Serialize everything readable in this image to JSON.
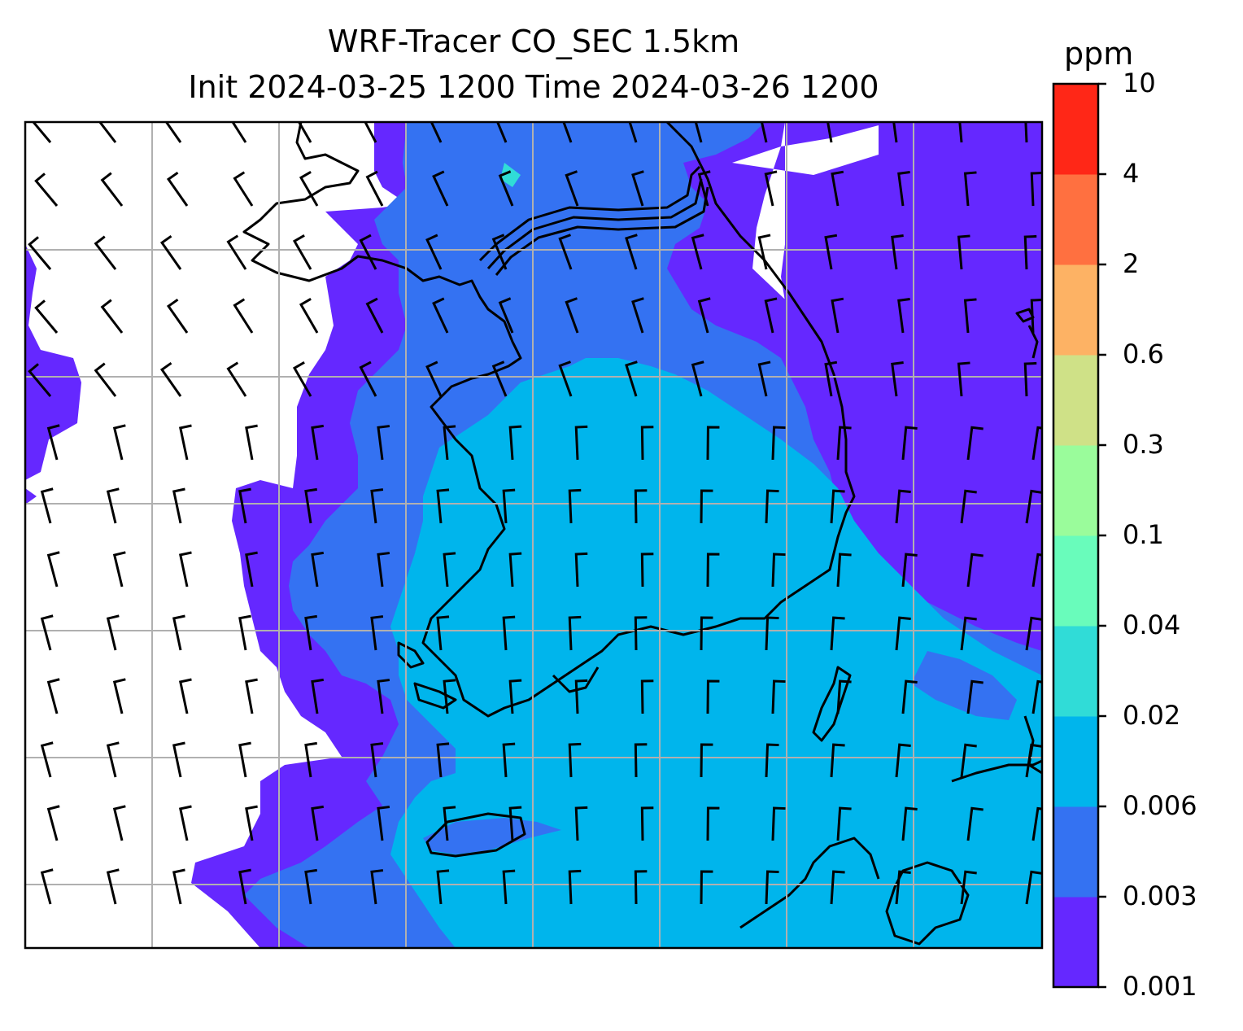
{
  "title": "WRF-Tracer CO_SEC 1.5km",
  "subtitle": "Init 2024-03-25 1200 Time 2024-03-26 1200",
  "colorbar": {
    "unit": "ppm",
    "levels": [
      "0.001",
      "0.003",
      "0.006",
      "0.02",
      "0.04",
      "0.1",
      "0.3",
      "0.6",
      "2",
      "4",
      "10"
    ],
    "colors": [
      "#6528ff",
      "#3472f2",
      "#00b5ec",
      "#30dcd7",
      "#69fcbb",
      "#9afc9b",
      "#cfe187",
      "#fdb264",
      "#ff7040",
      "#ff2717"
    ]
  },
  "map_layers": {
    "background": "#ffffff",
    "gridlines": "#b0b0b0",
    "coastline": "#000000",
    "wind": "wind barbs"
  }
}
